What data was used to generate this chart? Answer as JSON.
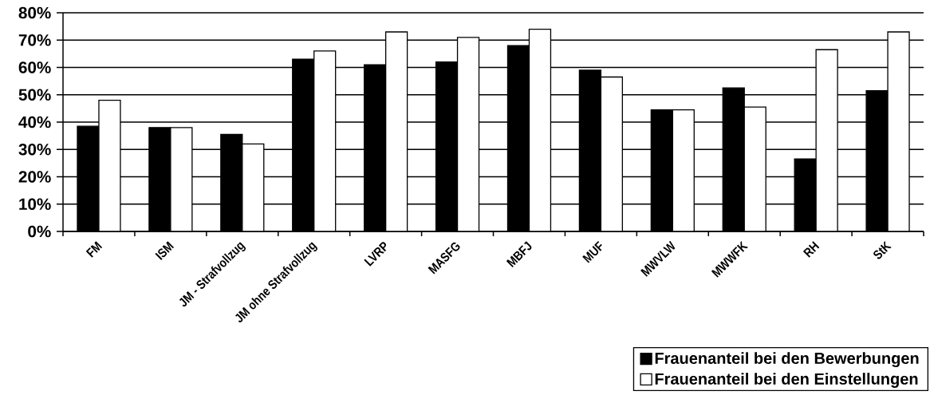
{
  "chart_data": {
    "type": "bar",
    "categories": [
      "FM",
      "ISM",
      "JM - Strafvollzug",
      "JM ohne Strafvollzug",
      "LVRP",
      "MASFG",
      "MBFJ",
      "MUF",
      "MWVLW",
      "MWWFK",
      "RH",
      "StK"
    ],
    "series": [
      {
        "name": "Frauenanteil bei den Bewerbungen",
        "color": "#000000",
        "values": [
          38.5,
          38,
          35.5,
          63,
          61,
          62,
          68,
          59,
          44.5,
          52.5,
          26.5,
          51.5
        ]
      },
      {
        "name": "Frauenanteil bei den Einstellungen",
        "color": "#ffffff",
        "values": [
          48,
          38,
          32,
          66,
          73,
          71,
          74,
          56.5,
          44.5,
          45.5,
          66.5,
          73
        ]
      }
    ],
    "ylim": [
      0,
      80
    ],
    "yticks": [
      {
        "value": 0,
        "label": "0%"
      },
      {
        "value": 10,
        "label": "10%"
      },
      {
        "value": 20,
        "label": "20%"
      },
      {
        "value": 30,
        "label": "30%"
      },
      {
        "value": 40,
        "label": "40%"
      },
      {
        "value": 50,
        "label": "50%"
      },
      {
        "value": 60,
        "label": "60%"
      },
      {
        "value": 70,
        "label": "70%"
      },
      {
        "value": 80,
        "label": "80%"
      }
    ],
    "grid": "y",
    "legend": "bottom right"
  }
}
